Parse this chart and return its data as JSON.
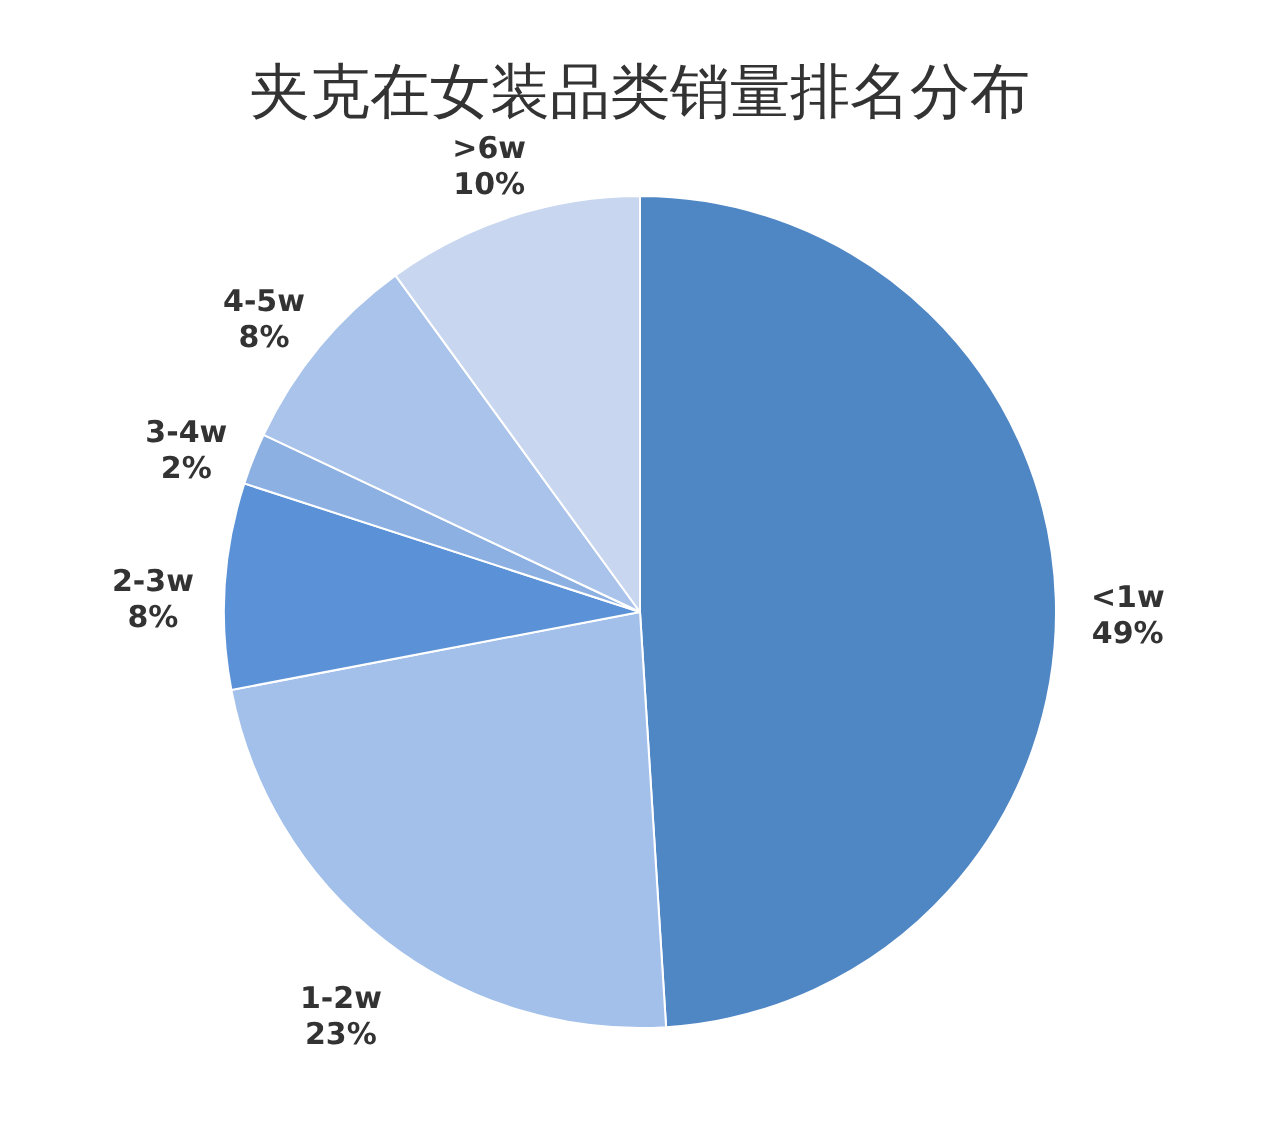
{
  "chart_data": {
    "type": "pie",
    "title": "夹克在女装品类销量排名分布",
    "categories": [
      "<1w",
      "1-2w",
      "2-3w",
      "3-4w",
      "4-5w",
      ">6w"
    ],
    "values": [
      49,
      23,
      8,
      2,
      8,
      10
    ],
    "value_labels": [
      "49%",
      "23%",
      "8%",
      "2%",
      "8%",
      "10%"
    ],
    "colors": [
      "#4f86c4",
      "#a3c0ea",
      "#5b91d6",
      "#8db0e2",
      "#a9c3ea",
      "#c8d7ef"
    ]
  }
}
